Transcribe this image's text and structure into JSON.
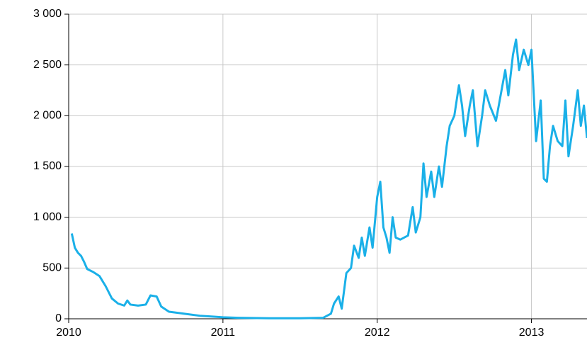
{
  "chart_data": {
    "type": "line",
    "x": [
      2010.02,
      2010.04,
      2010.06,
      2010.08,
      2010.1,
      2010.12,
      2010.16,
      2010.2,
      2010.24,
      2010.28,
      2010.32,
      2010.36,
      2010.38,
      2010.4,
      2010.45,
      2010.5,
      2010.53,
      2010.57,
      2010.6,
      2010.65,
      2010.75,
      2010.85,
      2010.95,
      2011.0,
      2011.1,
      2011.3,
      2011.5,
      2011.65,
      2011.7,
      2011.72,
      2011.75,
      2011.77,
      2011.8,
      2011.83,
      2011.85,
      2011.88,
      2011.9,
      2011.92,
      2011.95,
      2011.97,
      2012.0,
      2012.02,
      2012.04,
      2012.06,
      2012.08,
      2012.1,
      2012.12,
      2012.15,
      2012.2,
      2012.23,
      2012.25,
      2012.28,
      2012.3,
      2012.32,
      2012.35,
      2012.37,
      2012.4,
      2012.42,
      2012.45,
      2012.47,
      2012.5,
      2012.53,
      2012.55,
      2012.57,
      2012.6,
      2012.62,
      2012.65,
      2012.68,
      2012.7,
      2012.73,
      2012.77,
      2012.8,
      2012.83,
      2012.85,
      2012.88,
      2012.9,
      2012.92,
      2012.95,
      2012.98,
      2013.0,
      2013.03,
      2013.06,
      2013.08,
      2013.1,
      2013.12,
      2013.14,
      2013.17,
      2013.2,
      2013.22,
      2013.24,
      2013.27,
      2013.3,
      2013.32,
      2013.34,
      2013.36
    ],
    "series": [
      {
        "color": "#1ab0e8",
        "values": [
          840,
          700,
          650,
          620,
          560,
          490,
          460,
          420,
          320,
          200,
          150,
          130,
          180,
          140,
          130,
          140,
          230,
          220,
          120,
          70,
          50,
          30,
          20,
          15,
          10,
          5,
          5,
          10,
          50,
          150,
          220,
          100,
          450,
          500,
          720,
          600,
          800,
          620,
          900,
          700,
          1200,
          1350,
          900,
          800,
          650,
          1000,
          800,
          780,
          820,
          1100,
          850,
          1000,
          1530,
          1200,
          1450,
          1200,
          1500,
          1300,
          1700,
          1900,
          2000,
          2300,
          2100,
          1800,
          2100,
          2250,
          1700,
          2000,
          2250,
          2100,
          1950,
          2200,
          2450,
          2200,
          2600,
          2750,
          2450,
          2650,
          2500,
          2650,
          1750,
          2150,
          1380,
          1350,
          1700,
          1900,
          1750,
          1700,
          2150,
          1600,
          1900,
          2250,
          1900,
          2100,
          1780
        ]
      }
    ],
    "xlim": [
      2010,
      2013.36
    ],
    "xticks": [
      2010,
      2011,
      2012,
      2013
    ],
    "ylim": [
      0,
      3000
    ],
    "yticks": [
      0,
      500,
      {
        "value": 1000,
        "label": "1 000"
      },
      {
        "value": 1500,
        "label": "1 500"
      },
      {
        "value": 2000,
        "label": "2 000"
      },
      {
        "value": 2500,
        "label": "2 500"
      },
      {
        "value": 3000,
        "label": "3 000"
      }
    ],
    "grid": true
  }
}
